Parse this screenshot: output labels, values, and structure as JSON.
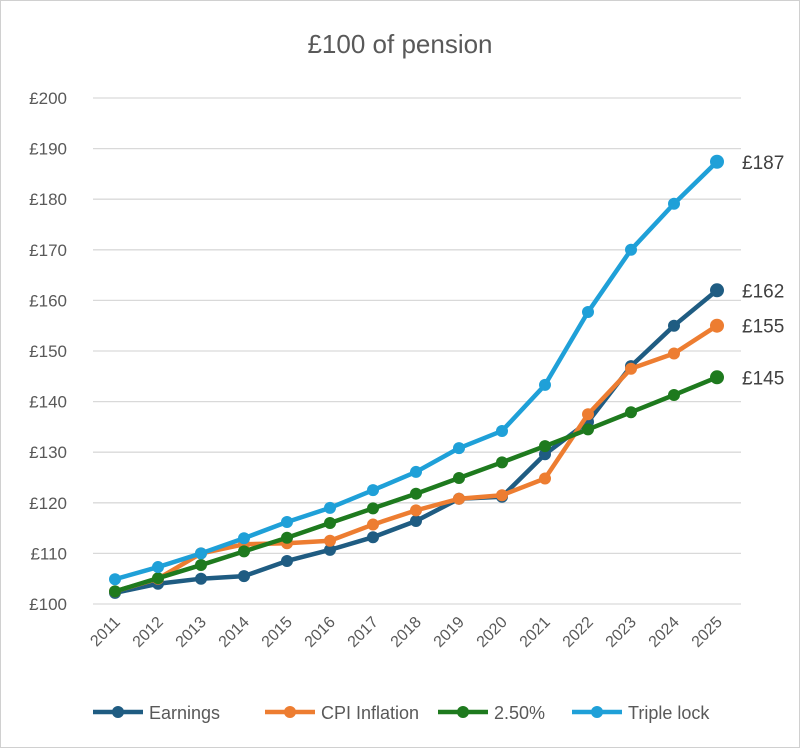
{
  "chart_data": {
    "type": "line",
    "title": "£100 of pension",
    "xlabel": "",
    "ylabel": "",
    "ylim": [
      100,
      200
    ],
    "yticks": [
      "£100",
      "£110",
      "£120",
      "£130",
      "£140",
      "£150",
      "£160",
      "£170",
      "£180",
      "£190",
      "£200"
    ],
    "ytick_values": [
      100,
      110,
      120,
      130,
      140,
      150,
      160,
      170,
      180,
      190,
      200
    ],
    "grid": true,
    "legend": "bottom",
    "categories": [
      "2011",
      "2012",
      "2013",
      "2014",
      "2015",
      "2016",
      "2017",
      "2018",
      "2019",
      "2020",
      "2021",
      "2022",
      "2023",
      "2024",
      "2025"
    ],
    "series": [
      {
        "name": "Earnings",
        "color": "#1f5c82",
        "values": [
          102.2,
          104.0,
          105.0,
          105.5,
          108.5,
          110.7,
          113.2,
          116.4,
          120.8,
          121.2,
          129.6,
          136.0,
          147.0,
          155.0,
          162.0
        ],
        "end_label": "£162"
      },
      {
        "name": "CPI Inflation",
        "color": "#ed7d31",
        "values": [
          102.5,
          105.0,
          110.0,
          111.8,
          112.0,
          112.5,
          115.7,
          118.5,
          120.8,
          121.5,
          124.8,
          137.5,
          146.5,
          149.5,
          155.0
        ],
        "end_label": "£155"
      },
      {
        "name": "2.50%",
        "color": "#1e7a1e",
        "values": [
          102.5,
          105.1,
          107.7,
          110.4,
          113.1,
          116.0,
          118.9,
          121.8,
          124.9,
          128.0,
          131.2,
          134.5,
          137.9,
          141.3,
          144.8
        ],
        "end_label": "£145"
      },
      {
        "name": "Triple lock",
        "color": "#1fa0d8",
        "values": [
          104.9,
          107.3,
          110.0,
          113.0,
          116.2,
          119.0,
          122.5,
          126.1,
          130.8,
          134.2,
          143.3,
          157.7,
          170.0,
          179.1,
          187.4
        ],
        "end_label": "£187"
      }
    ]
  }
}
